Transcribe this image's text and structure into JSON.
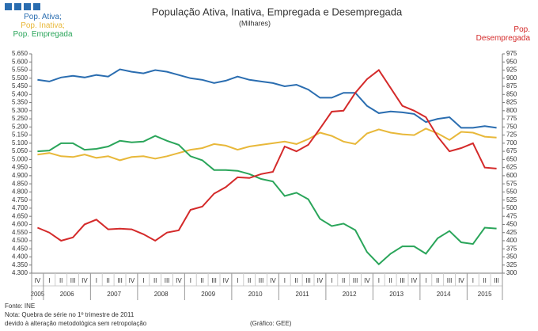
{
  "chart_data": {
    "type": "line",
    "title": "População Ativa, Inativa, Empregada e Desempregada",
    "subtitle": "(Milhares)",
    "categories": [
      "IV",
      "I",
      "II",
      "III",
      "IV",
      "I",
      "II",
      "III",
      "IV",
      "I",
      "II",
      "III",
      "IV",
      "I",
      "II",
      "III",
      "IV",
      "I",
      "II",
      "III",
      "IV",
      "I",
      "II",
      "III",
      "IV",
      "I",
      "II",
      "III",
      "IV",
      "I",
      "II",
      "III",
      "IV",
      "I",
      "II",
      "III",
      "IV",
      "I",
      "II",
      "III"
    ],
    "x_groups": [
      {
        "label": "2005",
        "first": 0,
        "last": 0
      },
      {
        "label": "2006",
        "first": 1,
        "last": 4
      },
      {
        "label": "2007",
        "first": 5,
        "last": 8
      },
      {
        "label": "2008",
        "first": 9,
        "last": 12
      },
      {
        "label": "2009",
        "first": 13,
        "last": 16
      },
      {
        "label": "2010",
        "first": 17,
        "last": 20
      },
      {
        "label": "2011",
        "first": 21,
        "last": 24
      },
      {
        "label": "2012",
        "first": 25,
        "last": 28
      },
      {
        "label": "2013",
        "first": 29,
        "last": 32
      },
      {
        "label": "2014",
        "first": 33,
        "last": 36
      },
      {
        "label": "2015",
        "first": 37,
        "last": 39
      }
    ],
    "series": [
      {
        "name": "Pop. Ativa;",
        "color": "#2a6db0",
        "values": [
          5490,
          5480,
          5505,
          5515,
          5505,
          5520,
          5510,
          5555,
          5540,
          5530,
          5550,
          5540,
          5520,
          5500,
          5490,
          5470,
          5485,
          5510,
          5490,
          5480,
          5470,
          5450,
          5460,
          5430,
          5380,
          5380,
          5410,
          5410,
          5330,
          5285,
          5295,
          5290,
          5280,
          5230,
          5250,
          5260,
          5195,
          5195,
          5205,
          5195
        ]
      },
      {
        "name": "Pop. Inativa;",
        "color": "#e8b83a",
        "values": [
          5030,
          5040,
          5020,
          5015,
          5030,
          5010,
          5020,
          4995,
          5015,
          5020,
          5005,
          5020,
          5040,
          5060,
          5070,
          5095,
          5085,
          5060,
          5080,
          5090,
          5100,
          5110,
          5095,
          5125,
          5165,
          5145,
          5110,
          5095,
          5160,
          5185,
          5165,
          5155,
          5150,
          5190,
          5160,
          5120,
          5170,
          5165,
          5140,
          5135
        ]
      },
      {
        "name": "Pop. Empregada",
        "color": "#2aa55a",
        "values": [
          5050,
          5055,
          5100,
          5100,
          5060,
          5065,
          5080,
          5115,
          5105,
          5110,
          5145,
          5115,
          5090,
          5020,
          4995,
          4935,
          4935,
          4930,
          4910,
          4880,
          4865,
          4775,
          4795,
          4755,
          4635,
          4590,
          4605,
          4565,
          4430,
          4355,
          4420,
          4465,
          4465,
          4420,
          4515,
          4560,
          4490,
          4480,
          4580,
          4575
        ]
      },
      {
        "name": "Pop. Desempregada",
        "color": "#d42a2a",
        "axis": "y2",
        "values": [
          440,
          425,
          400,
          410,
          450,
          465,
          435,
          437,
          435,
          420,
          400,
          425,
          432,
          495,
          505,
          545,
          565,
          595,
          593,
          605,
          612,
          690,
          675,
          695,
          745,
          797,
          800,
          855,
          897,
          925,
          870,
          815,
          800,
          780,
          720,
          675,
          685,
          700,
          625,
          622
        ]
      }
    ],
    "ylim": [
      4300,
      5650
    ],
    "yticks": [
      {
        "value": 4300,
        "label": "4.300"
      },
      {
        "value": 4350,
        "label": "4.350"
      },
      {
        "value": 4400,
        "label": "4.400"
      },
      {
        "value": 4450,
        "label": "4.450"
      },
      {
        "value": 4500,
        "label": "4.500"
      },
      {
        "value": 4550,
        "label": "4.550"
      },
      {
        "value": 4600,
        "label": "4.600"
      },
      {
        "value": 4650,
        "label": "4.650"
      },
      {
        "value": 4700,
        "label": "4.700"
      },
      {
        "value": 4750,
        "label": "4.750"
      },
      {
        "value": 4800,
        "label": "4.800"
      },
      {
        "value": 4850,
        "label": "4.850"
      },
      {
        "value": 4900,
        "label": "4.900"
      },
      {
        "value": 4950,
        "label": "4.950"
      },
      {
        "value": 5000,
        "label": "5.000"
      },
      {
        "value": 5050,
        "label": "5.050"
      },
      {
        "value": 5100,
        "label": "5.100"
      },
      {
        "value": 5150,
        "label": "5.150"
      },
      {
        "value": 5200,
        "label": "5.200"
      },
      {
        "value": 5250,
        "label": "5.250"
      },
      {
        "value": 5300,
        "label": "5.300"
      },
      {
        "value": 5350,
        "label": "5.350"
      },
      {
        "value": 5400,
        "label": "5.400"
      },
      {
        "value": 5450,
        "label": "5.450"
      },
      {
        "value": 5500,
        "label": "5.500"
      },
      {
        "value": 5550,
        "label": "5.550"
      },
      {
        "value": 5600,
        "label": "5.600"
      },
      {
        "value": 5650,
        "label": "5.650"
      }
    ],
    "y2lim": [
      300,
      975
    ],
    "y2ticks": [
      300,
      325,
      350,
      375,
      400,
      425,
      450,
      475,
      500,
      525,
      550,
      575,
      600,
      625,
      650,
      675,
      700,
      725,
      750,
      775,
      800,
      825,
      850,
      875,
      900,
      925,
      950,
      975
    ],
    "grid": false,
    "notes": [
      "Fonte: INE",
      "Nota: Quebra de série no 1º trimestre de 2011",
      "devido à alteração metodológica sem retropolação"
    ],
    "credit": "(Gráfico: GEE)"
  }
}
